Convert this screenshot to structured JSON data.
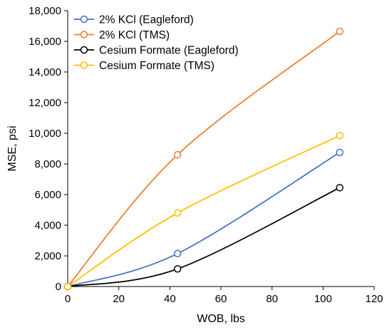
{
  "chart_data": {
    "type": "line",
    "title": "",
    "xlabel": "WOB, lbs",
    "ylabel": "MSE, psi",
    "xlim": [
      0,
      120
    ],
    "ylim": [
      0,
      18000
    ],
    "xticks": [
      0,
      20,
      40,
      60,
      80,
      100,
      120
    ],
    "yticks": [
      0,
      2000,
      4000,
      6000,
      8000,
      10000,
      12000,
      14000,
      16000,
      18000
    ],
    "xtick_labels": [
      "0",
      "20",
      "40",
      "60",
      "80",
      "100",
      "120"
    ],
    "ytick_labels": [
      "0",
      "2,000",
      "4,000",
      "6,000",
      "8,000",
      "10,000",
      "12,000",
      "14,000",
      "16,000",
      "18,000"
    ],
    "grid": false,
    "legend_position": "top-left",
    "series": [
      {
        "name": "2% KCl (Eagleford)",
        "color": "#4472C4",
        "x": [
          0,
          43,
          106.5
        ],
        "y": [
          0,
          2150,
          8750
        ]
      },
      {
        "name": "2% KCl (TMS)",
        "color": "#ED7D31",
        "x": [
          0,
          43,
          106.5
        ],
        "y": [
          0,
          8600,
          16650
        ]
      },
      {
        "name": "Cesium Formate (Eagleford)",
        "color": "#000000",
        "x": [
          0,
          43,
          106.5
        ],
        "y": [
          0,
          1150,
          6450
        ]
      },
      {
        "name": "Cesium Formate (TMS)",
        "color": "#FFC000",
        "x": [
          0,
          43,
          106.5
        ],
        "y": [
          0,
          4800,
          9850
        ]
      }
    ]
  }
}
